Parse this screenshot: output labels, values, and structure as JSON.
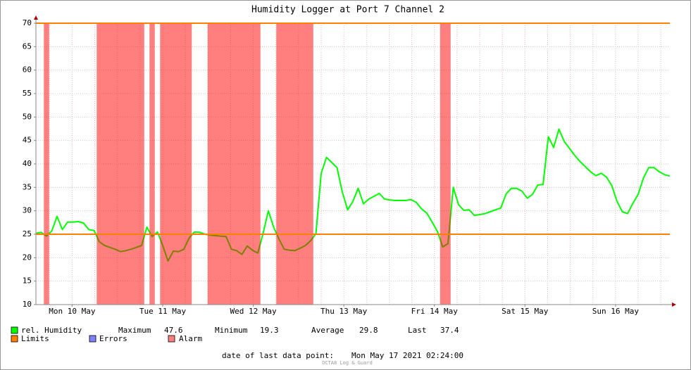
{
  "chart_data": {
    "type": "line",
    "title": "Humidity Logger at Port 7 Channel 2",
    "x_labels": [
      "Mon 10 May",
      "Tue 11 May",
      "Wed 12 May",
      "Thu 13 May",
      "Fri 14 May",
      "Sat 15 May",
      "Sun 16 May"
    ],
    "series": [
      {
        "name": "rel. Humidity",
        "color": "#00ff00",
        "values": [
          25.2,
          25.4,
          24.6,
          25.7,
          28.8,
          26,
          27.6,
          27.6,
          27.7,
          27.4,
          26,
          25.8,
          23.4,
          22.6,
          22.2,
          21.8,
          21.3,
          21.5,
          21.8,
          22.2,
          22.6,
          26.5,
          24.5,
          25.5,
          22.6,
          19.3,
          21.4,
          21.3,
          21.8,
          24.2,
          25.5,
          25.4,
          25,
          24.8,
          24.7,
          24.6,
          24.5,
          21.8,
          21.5,
          20.7,
          22.5,
          21.6,
          21,
          25.2,
          30,
          26.5,
          24,
          21.8,
          21.6,
          21.5,
          22,
          22.6,
          23.6,
          25.1,
          38,
          41.4,
          40.3,
          39.2,
          34,
          30.2,
          32,
          34.8,
          31.5,
          32.5,
          33.1,
          33.7,
          32.5,
          32.3,
          32.2,
          32.2,
          32.2,
          32.4,
          31.8,
          30.4,
          29.5,
          27.6,
          25.6,
          22.3,
          23,
          35,
          31.3,
          30.1,
          30.2,
          29,
          29.2,
          29.4,
          29.8,
          30.2,
          30.6,
          33.6,
          34.8,
          34.8,
          34.2,
          32.7,
          33.5,
          35.5,
          35.6,
          45.8,
          43.5,
          47.4,
          44.8,
          43.3,
          41.8,
          40.5,
          39.4,
          38.3,
          37.5,
          38,
          37.2,
          35.4,
          32,
          29.8,
          29.4,
          31.6,
          33.5,
          37,
          39.2,
          39.2,
          38.3,
          37.7,
          37.4
        ]
      }
    ],
    "limits": {
      "name": "Limits",
      "color": "#ff7f00",
      "values": [
        25,
        70
      ]
    },
    "errors": {
      "name": "Errors",
      "color": "#7f7fff"
    },
    "alarm": {
      "name": "Alarm",
      "color": "#ff0000"
    },
    "stats": [
      {
        "label": "Maximum",
        "value": 47.6
      },
      {
        "label": "Minimum",
        "value": 19.3
      },
      {
        "label": "Average",
        "value": 29.8
      },
      {
        "label": "Last",
        "value": 37.4
      }
    ],
    "footer": {
      "label": "date of last data point:",
      "value": "Mon May 17 2021 02:24:00"
    },
    "credit": "OCTA8 Log & Guard",
    "ylim": [
      10,
      70
    ],
    "yticks": [
      10,
      15,
      20,
      25,
      30,
      35,
      40,
      45,
      50,
      55,
      60,
      65,
      70
    ],
    "grid": true
  }
}
